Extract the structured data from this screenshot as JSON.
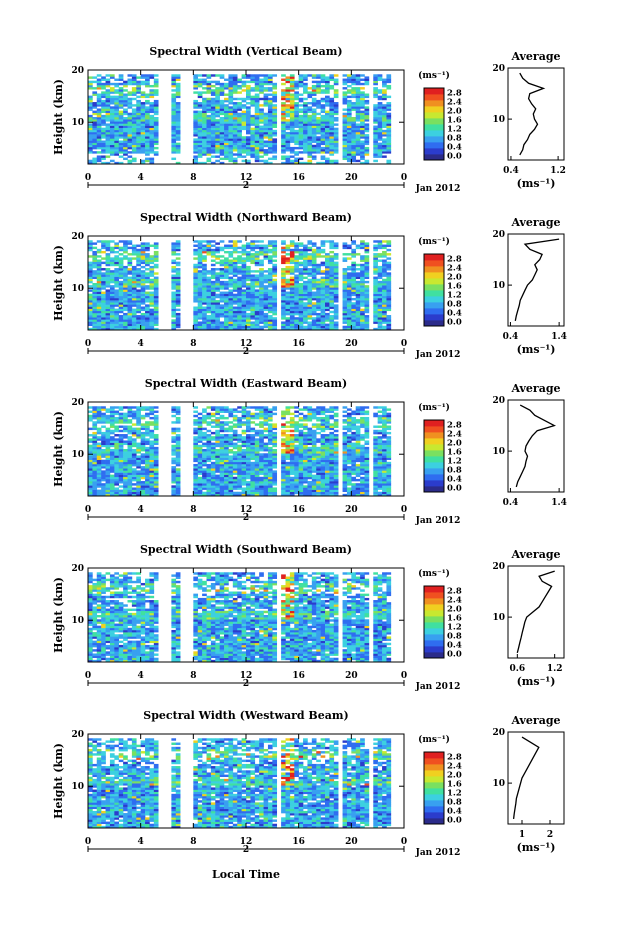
{
  "figure": {
    "shared_xlabel": "Local Time",
    "date_label": "Jan 2012",
    "day_label": "2",
    "height_label": "Height (km)",
    "avg_title": "Average",
    "unit_label": "(ms⁻¹)",
    "colors": [
      "#2b2b8a",
      "#2b3ccc",
      "#2f6df0",
      "#38a0f0",
      "#3cd0e0",
      "#40e0a0",
      "#7ae060",
      "#c8e830",
      "#f0d020",
      "#f09020",
      "#f05020",
      "#e02020"
    ]
  },
  "chart_data": [
    {
      "type": "heatmap",
      "title": "Spectral Width (Vertical Beam)",
      "xlabel": "Local Time",
      "ylabel": "Height (km)",
      "x_ticks": [
        "0",
        "4",
        "8",
        "12",
        "16",
        "20",
        "0"
      ],
      "y_ticks": [
        "10",
        "20"
      ],
      "xlim": [
        0,
        24
      ],
      "ylim": [
        2,
        20
      ],
      "colorbar": {
        "unit": "(ms⁻¹)",
        "ticks": [
          "0.0",
          "0.4",
          "0.8",
          "1.2",
          "1.6",
          "2.0",
          "2.4",
          "2.8"
        ]
      },
      "gaps": [
        [
          5.5,
          6.2
        ],
        [
          6.9,
          8.1
        ],
        [
          14.3,
          14.6
        ],
        [
          19.1,
          19.4
        ],
        [
          21.5,
          21.8
        ],
        [
          22.9,
          24
        ]
      ],
      "average_profile": {
        "xlabel": "(ms⁻¹)",
        "x_ticks": [
          "0.4",
          "1.2"
        ],
        "xlim": [
          0.35,
          1.3
        ],
        "y_ticks": [
          "10",
          "20"
        ],
        "ylim": [
          2,
          20
        ],
        "height": [
          3,
          4,
          5,
          6,
          7,
          8,
          9,
          10,
          11,
          12,
          13,
          14,
          15,
          16,
          17,
          18,
          19
        ],
        "width": [
          0.55,
          0.6,
          0.62,
          0.68,
          0.72,
          0.8,
          0.85,
          0.8,
          0.78,
          0.82,
          0.75,
          0.7,
          0.72,
          0.95,
          0.7,
          0.6,
          0.55
        ]
      }
    },
    {
      "type": "heatmap",
      "title": "Spectral Width (Northward Beam)",
      "xlabel": "Local Time",
      "ylabel": "Height (km)",
      "x_ticks": [
        "0",
        "4",
        "8",
        "12",
        "16",
        "20",
        "0"
      ],
      "y_ticks": [
        "10",
        "20"
      ],
      "xlim": [
        0,
        24
      ],
      "ylim": [
        2,
        20
      ],
      "colorbar": {
        "unit": "(ms⁻¹)",
        "ticks": [
          "0.0",
          "0.4",
          "0.8",
          "1.2",
          "1.6",
          "2.0",
          "2.4",
          "2.8"
        ]
      },
      "gaps": [
        [
          5.5,
          6.2
        ],
        [
          6.9,
          8.1
        ],
        [
          14.3,
          14.6
        ],
        [
          19.1,
          19.4
        ],
        [
          21.5,
          21.8
        ],
        [
          22.9,
          24
        ]
      ],
      "average_profile": {
        "xlabel": "(ms⁻¹)",
        "x_ticks": [
          "0.4",
          "1.4"
        ],
        "xlim": [
          0.35,
          1.5
        ],
        "y_ticks": [
          "10",
          "20"
        ],
        "ylim": [
          2,
          20
        ],
        "height": [
          3,
          4,
          5,
          6,
          7,
          8,
          9,
          10,
          11,
          12,
          13,
          14,
          15,
          16,
          17,
          18,
          19
        ],
        "width": [
          0.5,
          0.52,
          0.55,
          0.58,
          0.6,
          0.65,
          0.7,
          0.75,
          0.85,
          0.9,
          0.95,
          0.9,
          1.0,
          1.05,
          0.8,
          0.7,
          1.4
        ]
      }
    },
    {
      "type": "heatmap",
      "title": "Spectral Width (Eastward Beam)",
      "xlabel": "Local Time",
      "ylabel": "Height (km)",
      "x_ticks": [
        "0",
        "4",
        "8",
        "12",
        "16",
        "20",
        "0"
      ],
      "y_ticks": [
        "10",
        "20"
      ],
      "xlim": [
        0,
        24
      ],
      "ylim": [
        2,
        20
      ],
      "colorbar": {
        "unit": "(ms⁻¹)",
        "ticks": [
          "0.0",
          "0.4",
          "0.8",
          "1.2",
          "1.6",
          "2.0",
          "2.4",
          "2.8"
        ]
      },
      "gaps": [
        [
          5.5,
          6.2
        ],
        [
          6.9,
          8.1
        ],
        [
          14.3,
          14.6
        ],
        [
          19.1,
          19.4
        ],
        [
          21.5,
          21.8
        ],
        [
          22.9,
          24
        ]
      ],
      "average_profile": {
        "xlabel": "",
        "x_ticks": [
          "0.4",
          "1.4"
        ],
        "xlim": [
          0.35,
          1.5
        ],
        "y_ticks": [
          "10",
          "20"
        ],
        "ylim": [
          2,
          20
        ],
        "height": [
          3,
          4,
          5,
          6,
          7,
          8,
          9,
          10,
          11,
          12,
          13,
          14,
          15,
          16,
          17,
          18,
          19
        ],
        "width": [
          0.52,
          0.55,
          0.6,
          0.65,
          0.7,
          0.72,
          0.75,
          0.7,
          0.72,
          0.78,
          0.85,
          0.95,
          1.3,
          1.1,
          0.9,
          0.8,
          0.6
        ]
      }
    },
    {
      "type": "heatmap",
      "title": "Spectral Width (Southward Beam)",
      "xlabel": "Local Time",
      "ylabel": "Height (km)",
      "x_ticks": [
        "0",
        "4",
        "8",
        "12",
        "16",
        "20",
        "0"
      ],
      "y_ticks": [
        "10",
        "20"
      ],
      "xlim": [
        0,
        24
      ],
      "ylim": [
        2,
        20
      ],
      "colorbar": {
        "unit": "(ms⁻¹)",
        "ticks": [
          "0.0",
          "0.4",
          "0.8",
          "1.2",
          "1.6",
          "2.0",
          "2.4",
          "2.8"
        ]
      },
      "gaps": [
        [
          5.5,
          6.2
        ],
        [
          6.9,
          8.1
        ],
        [
          14.3,
          14.6
        ],
        [
          19.1,
          19.4
        ],
        [
          21.5,
          21.8
        ],
        [
          22.9,
          24
        ]
      ],
      "average_profile": {
        "xlabel": "(ms⁻¹)",
        "x_ticks": [
          "0.6",
          "1.2"
        ],
        "xlim": [
          0.45,
          1.35
        ],
        "y_ticks": [
          "10",
          "20"
        ],
        "ylim": [
          2,
          20
        ],
        "height": [
          3,
          4,
          5,
          6,
          7,
          8,
          9,
          10,
          11,
          12,
          13,
          14,
          15,
          16,
          17,
          18,
          19
        ],
        "width": [
          0.6,
          0.62,
          0.64,
          0.66,
          0.68,
          0.7,
          0.72,
          0.75,
          0.85,
          0.95,
          1.0,
          1.05,
          1.1,
          1.15,
          1.0,
          0.95,
          1.2
        ]
      }
    },
    {
      "type": "heatmap",
      "title": "Spectral Width (Westward Beam)",
      "xlabel": "Local Time",
      "ylabel": "Height (km)",
      "x_ticks": [
        "0",
        "4",
        "8",
        "12",
        "16",
        "20",
        "0"
      ],
      "y_ticks": [
        "10",
        "20"
      ],
      "xlim": [
        0,
        24
      ],
      "ylim": [
        2,
        20
      ],
      "colorbar": {
        "unit": "(ms⁻¹)",
        "ticks": [
          "0.0",
          "0.4",
          "0.8",
          "1.2",
          "1.6",
          "2.0",
          "2.4",
          "2.8"
        ]
      },
      "gaps": [
        [
          5.5,
          6.2
        ],
        [
          6.9,
          8.1
        ],
        [
          14.3,
          14.6
        ],
        [
          19.1,
          19.4
        ],
        [
          21.5,
          21.8
        ],
        [
          22.9,
          24
        ]
      ],
      "average_profile": {
        "xlabel": "(ms⁻¹)",
        "x_ticks": [
          "1",
          "2"
        ],
        "xlim": [
          0.5,
          2.5
        ],
        "y_ticks": [
          "10",
          "20"
        ],
        "ylim": [
          2,
          20
        ],
        "height": [
          3,
          4,
          5,
          6,
          7,
          8,
          9,
          10,
          11,
          12,
          13,
          14,
          15,
          16,
          17,
          18,
          19
        ],
        "width": [
          0.7,
          0.72,
          0.75,
          0.78,
          0.8,
          0.85,
          0.9,
          0.95,
          1.0,
          1.1,
          1.2,
          1.3,
          1.4,
          1.5,
          1.6,
          1.3,
          1.0
        ]
      }
    }
  ]
}
